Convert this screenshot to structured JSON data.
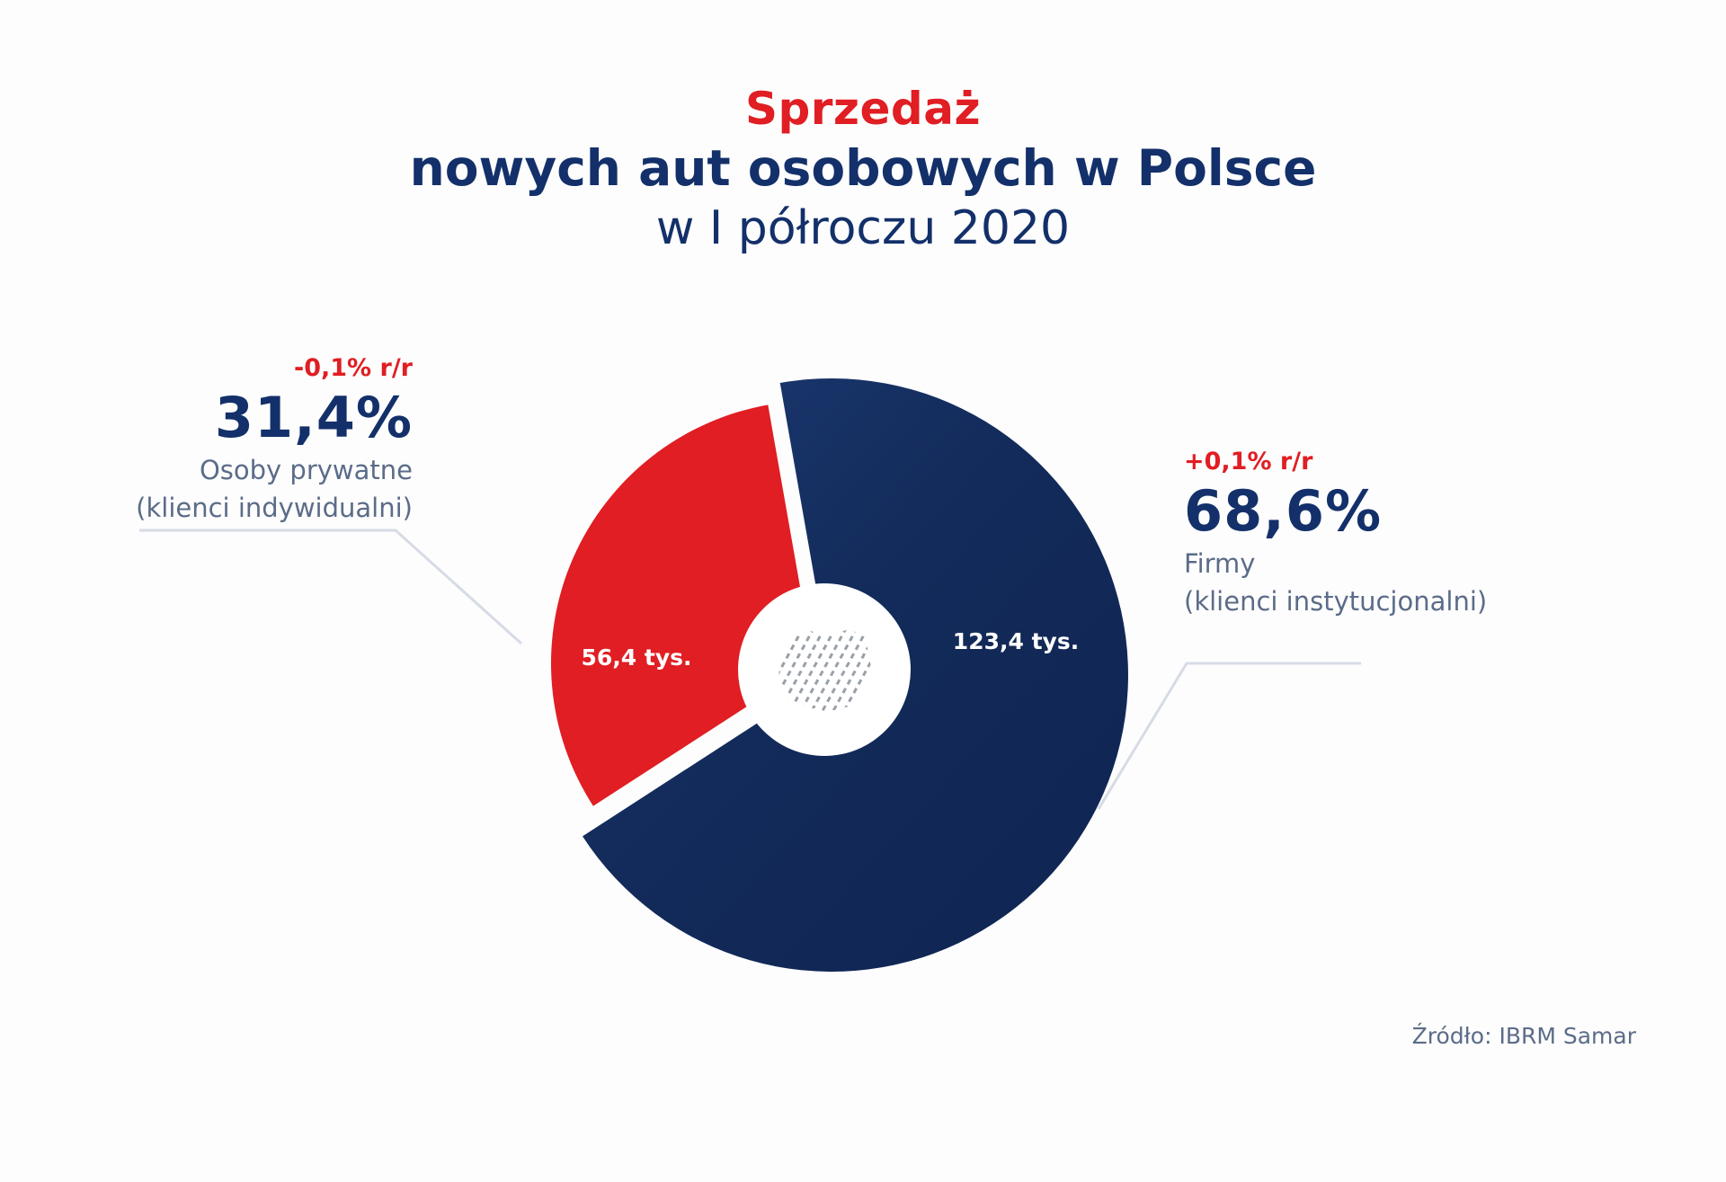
{
  "title": {
    "line1": "Sprzedaż",
    "line2": "nowych aut osobowych w Polsce",
    "line3": "w I półroczu 2020"
  },
  "colors": {
    "red": "#e01e23",
    "navy": "#13306a",
    "navy_dark": "#122a56",
    "slate": "#5b6c88",
    "leader": "#d6dbe5",
    "hole": "#ffffff"
  },
  "segments": {
    "private": {
      "change": "-0,1% r/r",
      "percent": "31,4%",
      "label1": "Osoby prywatne",
      "label2": "(klienci indywidualni)"
    },
    "business": {
      "change": "+0,1% r/r",
      "percent": "68,6%",
      "label1": "Firmy",
      "label2": "(klienci instytucjonalni)"
    }
  },
  "source": "Źródło: IBRM Samar",
  "center_icon": "poland-map-icon",
  "chart_data": {
    "type": "pie",
    "title": "Sprzedaż nowych aut osobowych w Polsce w I półroczu 2020",
    "unit": "tys.",
    "slices": [
      {
        "name": "Osoby prywatne (klienci indywidualni)",
        "value": 56.4,
        "value_label": "56,4 tys.",
        "percent": 31.4,
        "change_yoy": "-0,1% r/r",
        "color": "#e01e23"
      },
      {
        "name": "Firmy (klienci instytucjonalni)",
        "value": 123.4,
        "value_label": "123,4 tys.",
        "percent": 68.6,
        "change_yoy": "+0,1% r/r",
        "color": "#13306a"
      }
    ],
    "legend": "callouts"
  }
}
